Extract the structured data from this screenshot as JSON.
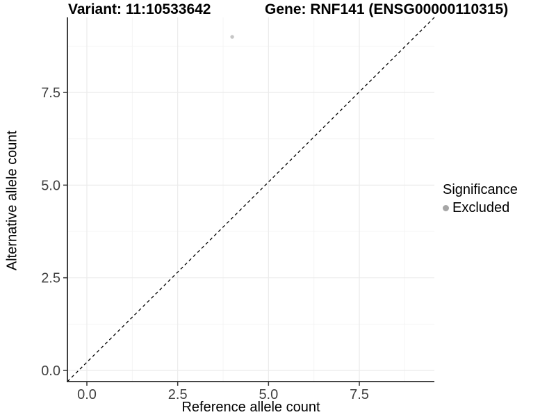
{
  "titles": {
    "variant": "Variant: 11:10533642",
    "gene": "Gene: RNF141 (ENSG00000110315)"
  },
  "axes": {
    "x_label": "Reference allele count",
    "y_label": "Alternative allele count"
  },
  "legend": {
    "title": "Significance",
    "items": [
      {
        "label": "Excluded",
        "color": "#a6a6a6"
      }
    ]
  },
  "chart_data": {
    "type": "scatter",
    "title": "Variant: 11:10533642   Gene: RNF141 (ENSG00000110315)",
    "xlabel": "Reference allele count",
    "ylabel": "Alternative allele count",
    "xlim": [
      -0.55,
      9.55
    ],
    "ylim": [
      -0.35,
      9.55
    ],
    "x_ticks": [
      0.0,
      2.5,
      5.0,
      7.5
    ],
    "y_ticks": [
      0.0,
      2.5,
      5.0,
      7.5
    ],
    "x_minor_ticks": [
      1.25,
      3.75,
      6.25,
      8.75
    ],
    "y_minor_ticks": [
      1.25,
      3.75,
      6.25,
      8.75
    ],
    "tick_label_format": [
      "0.0",
      "2.5",
      "5.0",
      "7.5"
    ],
    "series": [
      {
        "name": "Excluded",
        "color": "#c6c6c6",
        "points": [
          {
            "x": 4,
            "y": 9
          }
        ]
      }
    ],
    "reference_line": {
      "kind": "identity y=x",
      "style": "dashed",
      "color": "#000000"
    },
    "grid": true,
    "legend_position": "right-middle",
    "colors": {
      "background": "#ffffff",
      "grid_major": "#ebebeb",
      "grid_minor": "#f4f4f4",
      "axis_line": "#2b2b2b",
      "tick_mark": "#333333",
      "tick_text": "#404040",
      "point": "#c6c6c6",
      "legend_key": "#a6a6a6"
    }
  }
}
